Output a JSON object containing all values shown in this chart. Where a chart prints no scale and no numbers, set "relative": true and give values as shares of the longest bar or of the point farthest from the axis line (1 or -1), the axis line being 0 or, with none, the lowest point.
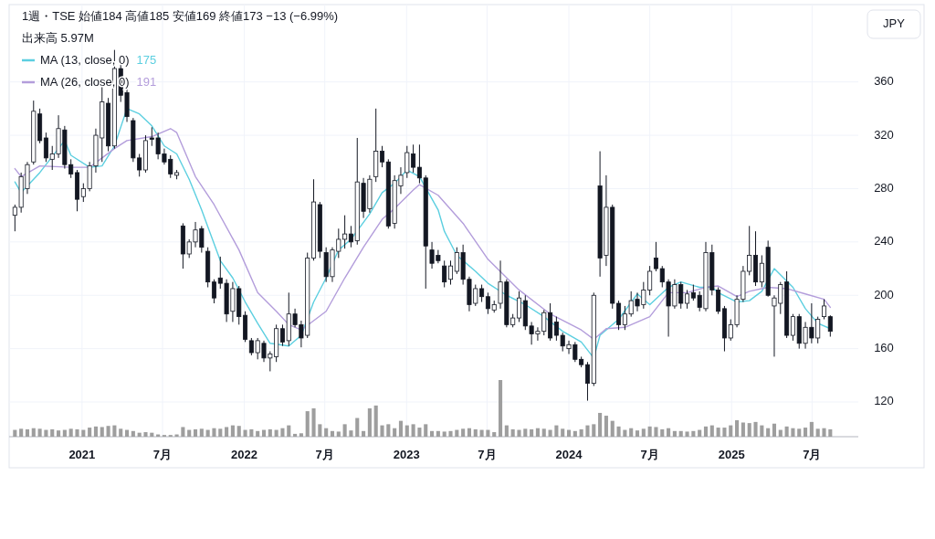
{
  "chart_data": [
    {
      "type": "candlestick",
      "title": "1週・TSE 始値184 高値185 安値169 終値173 −13 (−6.99%)",
      "ylabel": "JPY",
      "annotations": [
        "出来高 5.97M",
        "175",
        "191"
      ],
      "x": [
        "2020-08-03",
        "2020-08-17",
        "2020-08-31",
        "2020-09-14",
        "2020-09-28",
        "2020-10-12",
        "2020-10-26",
        "2020-11-09",
        "2020-11-23",
        "2020-12-07",
        "2020-12-21",
        "2021-01-04",
        "2021-01-18",
        "2021-02-01",
        "2021-02-15",
        "2021-03-01",
        "2021-03-15",
        "2021-03-29",
        "2021-04-12",
        "2021-04-26",
        "2021-05-10",
        "2021-05-24",
        "2021-06-07",
        "2021-06-21",
        "2021-07-05",
        "2021-07-19",
        "2021-08-02",
        "2021-08-16",
        "2021-08-30",
        "2021-09-13",
        "2021-09-27",
        "2021-10-11",
        "2021-10-25",
        "2021-11-08",
        "2021-11-22",
        "2021-12-06",
        "2021-12-20",
        "2022-01-03",
        "2022-01-17",
        "2022-01-31",
        "2022-02-14",
        "2022-02-28",
        "2022-03-14",
        "2022-03-28",
        "2022-04-11",
        "2022-04-25",
        "2022-05-09",
        "2022-05-23",
        "2022-06-06",
        "2022-06-20",
        "2022-07-04",
        "2022-07-18",
        "2022-08-01",
        "2022-08-15",
        "2022-08-29",
        "2022-09-12",
        "2022-09-26",
        "2022-10-10",
        "2022-10-24",
        "2022-11-07",
        "2022-11-21",
        "2022-12-05",
        "2022-12-19",
        "2023-01-02",
        "2023-01-16",
        "2023-01-30",
        "2023-02-13",
        "2023-02-27",
        "2023-03-13",
        "2023-03-27",
        "2023-04-10",
        "2023-04-24",
        "2023-05-08",
        "2023-05-22",
        "2023-06-05",
        "2023-06-19",
        "2023-07-03",
        "2023-07-17",
        "2023-07-31",
        "2023-08-14",
        "2023-08-28",
        "2023-09-11",
        "2023-09-25",
        "2023-10-09",
        "2023-10-23",
        "2023-11-06",
        "2023-11-20",
        "2023-12-04",
        "2023-12-18",
        "2024-01-01",
        "2024-01-15",
        "2024-01-29",
        "2024-02-12",
        "2024-02-26",
        "2024-03-11",
        "2024-03-25",
        "2024-04-08",
        "2024-04-22",
        "2024-05-06",
        "2024-05-20",
        "2024-06-03",
        "2024-06-17",
        "2024-07-01",
        "2024-07-15",
        "2024-07-29",
        "2024-08-12",
        "2024-08-26",
        "2024-09-09",
        "2024-09-23",
        "2024-10-07",
        "2024-10-21",
        "2024-11-04",
        "2024-11-18",
        "2024-12-02",
        "2024-12-16",
        "2024-12-30",
        "2025-01-13",
        "2025-01-27",
        "2025-02-10",
        "2025-02-24",
        "2025-03-10",
        "2025-03-24",
        "2025-04-07",
        "2025-04-21",
        "2025-05-05",
        "2025-05-19",
        "2025-06-02",
        "2025-06-16",
        "2025-06-30",
        "2025-07-14",
        "2025-07-28",
        "2025-08-11"
      ],
      "ohlc": [
        [
          260,
          268,
          248,
          266
        ],
        [
          266,
          292,
          262,
          289
        ],
        [
          280,
          300,
          276,
          298
        ],
        [
          300,
          346,
          298,
          338
        ],
        [
          336,
          340,
          314,
          316
        ],
        [
          318,
          322,
          300,
          303
        ],
        [
          302,
          312,
          294,
          306
        ],
        [
          306,
          335,
          303,
          325
        ],
        [
          324,
          327,
          295,
          298
        ],
        [
          298,
          302,
          288,
          291
        ],
        [
          292,
          294,
          263,
          272
        ],
        [
          274,
          284,
          270,
          280
        ],
        [
          280,
          300,
          278,
          297
        ],
        [
          297,
          325,
          292,
          320
        ],
        [
          318,
          358,
          300,
          345
        ],
        [
          344,
          348,
          308,
          312
        ],
        [
          312,
          384,
          310,
          370
        ],
        [
          370,
          375,
          345,
          350
        ],
        [
          352,
          356,
          330,
          334
        ],
        [
          331,
          333,
          300,
          303
        ],
        [
          303,
          306,
          289,
          294
        ],
        [
          294,
          320,
          292,
          316
        ],
        [
          318,
          326,
          312,
          317
        ],
        [
          318,
          322,
          302,
          306
        ],
        [
          306,
          310,
          298,
          300
        ],
        [
          302,
          305,
          288,
          291
        ],
        [
          290,
          294,
          287,
          292
        ],
        [
          252,
          254,
          220,
          231
        ],
        [
          231,
          242,
          228,
          240
        ],
        [
          240,
          255,
          236,
          249
        ],
        [
          250,
          252,
          232,
          236
        ],
        [
          233,
          236,
          206,
          210
        ],
        [
          210,
          212,
          194,
          198
        ],
        [
          213,
          229,
          205,
          209
        ],
        [
          209,
          212,
          180,
          186
        ],
        [
          188,
          210,
          180,
          205
        ],
        [
          205,
          207,
          178,
          184
        ],
        [
          185,
          188,
          165,
          167
        ],
        [
          166,
          168,
          155,
          157
        ],
        [
          157,
          168,
          152,
          166
        ],
        [
          164,
          166,
          150,
          153
        ],
        [
          153,
          158,
          143,
          156
        ],
        [
          154,
          178,
          150,
          175
        ],
        [
          175,
          178,
          162,
          165
        ],
        [
          166,
          202,
          162,
          186
        ],
        [
          186,
          190,
          176,
          178
        ],
        [
          178,
          181,
          161,
          168
        ],
        [
          170,
          232,
          168,
          228
        ],
        [
          228,
          287,
          226,
          270
        ],
        [
          268,
          270,
          228,
          233
        ],
        [
          232,
          236,
          210,
          214
        ],
        [
          214,
          236,
          210,
          234
        ],
        [
          233,
          250,
          228,
          242
        ],
        [
          242,
          260,
          235,
          246
        ],
        [
          246,
          252,
          236,
          240
        ],
        [
          241,
          318,
          238,
          285
        ],
        [
          284,
          288,
          258,
          263
        ],
        [
          265,
          290,
          262,
          287
        ],
        [
          289,
          340,
          285,
          308
        ],
        [
          308,
          312,
          296,
          300
        ],
        [
          300,
          302,
          250,
          252
        ],
        [
          254,
          290,
          250,
          286
        ],
        [
          282,
          296,
          276,
          290
        ],
        [
          292,
          312,
          288,
          307
        ],
        [
          306,
          313,
          292,
          296
        ],
        [
          296,
          313,
          284,
          288
        ],
        [
          288,
          290,
          205,
          237
        ],
        [
          234,
          240,
          220,
          224
        ],
        [
          230,
          234,
          224,
          226
        ],
        [
          222,
          226,
          206,
          210
        ],
        [
          212,
          226,
          208,
          222
        ],
        [
          218,
          236,
          216,
          232
        ],
        [
          232,
          238,
          208,
          212
        ],
        [
          212,
          214,
          188,
          193
        ],
        [
          194,
          208,
          192,
          205
        ],
        [
          205,
          208,
          195,
          199
        ],
        [
          199,
          202,
          186,
          190
        ],
        [
          189,
          196,
          187,
          193
        ],
        [
          194,
          226,
          190,
          210
        ],
        [
          210,
          212,
          176,
          178
        ],
        [
          178,
          186,
          176,
          183
        ],
        [
          183,
          203,
          180,
          198
        ],
        [
          196,
          200,
          174,
          177
        ],
        [
          177,
          180,
          163,
          171
        ],
        [
          171,
          176,
          166,
          173
        ],
        [
          173,
          189,
          170,
          187
        ],
        [
          187,
          194,
          166,
          168
        ],
        [
          180,
          184,
          166,
          170
        ],
        [
          170,
          172,
          158,
          162
        ],
        [
          160,
          166,
          156,
          163
        ],
        [
          163,
          165,
          150,
          152
        ],
        [
          152,
          154,
          146,
          148
        ],
        [
          148,
          150,
          121,
          134
        ],
        [
          134,
          202,
          132,
          200
        ],
        [
          282,
          308,
          214,
          228
        ],
        [
          230,
          290,
          222,
          266
        ],
        [
          266,
          268,
          190,
          194
        ],
        [
          194,
          196,
          174,
          178
        ],
        [
          178,
          192,
          174,
          186
        ],
        [
          186,
          203,
          184,
          196
        ],
        [
          197,
          202,
          188,
          192
        ],
        [
          193,
          210,
          190,
          204
        ],
        [
          204,
          222,
          200,
          218
        ],
        [
          228,
          240,
          218,
          220
        ],
        [
          220,
          222,
          206,
          210
        ],
        [
          210,
          212,
          169,
          192
        ],
        [
          192,
          212,
          190,
          208
        ],
        [
          208,
          210,
          190,
          194
        ],
        [
          194,
          204,
          190,
          201
        ],
        [
          202,
          208,
          196,
          198
        ],
        [
          200,
          203,
          188,
          191
        ],
        [
          190,
          240,
          188,
          232
        ],
        [
          232,
          238,
          200,
          204
        ],
        [
          204,
          206,
          186,
          188
        ],
        [
          190,
          192,
          158,
          168
        ],
        [
          168,
          182,
          166,
          178
        ],
        [
          178,
          200,
          176,
          197
        ],
        [
          197,
          222,
          195,
          218
        ],
        [
          218,
          252,
          215,
          230
        ],
        [
          230,
          248,
          207,
          210
        ],
        [
          210,
          230,
          206,
          224
        ],
        [
          236,
          241,
          199,
          200
        ],
        [
          192,
          200,
          154,
          198
        ],
        [
          194,
          210,
          186,
          208
        ],
        [
          210,
          218,
          168,
          170
        ],
        [
          170,
          186,
          166,
          184
        ],
        [
          184,
          186,
          160,
          164
        ],
        [
          164,
          180,
          160,
          176
        ],
        [
          176,
          194,
          164,
          168
        ],
        [
          168,
          184,
          164,
          182
        ],
        [
          184,
          197,
          182,
          192
        ],
        [
          184,
          185,
          169,
          173
        ]
      ],
      "series": [
        {
          "type": "line",
          "name": "MA (13, close, 0)",
          "color": "#5ccfe0",
          "x": [
            "2020-08-03",
            "2020-08-17",
            "2020-09-28",
            "2020-11-23",
            "2020-12-07",
            "2021-01-18",
            "2021-02-15",
            "2021-03-15",
            "2021-04-12",
            "2021-05-10",
            "2021-06-07",
            "2021-07-05",
            "2021-08-02",
            "2021-08-30",
            "2021-09-27",
            "2021-11-08",
            "2021-12-06",
            "2022-01-03",
            "2022-01-31",
            "2022-02-28",
            "2022-04-11",
            "2022-05-09",
            "2022-06-06",
            "2022-07-04",
            "2022-08-01",
            "2022-08-29",
            "2022-10-10",
            "2022-11-07",
            "2022-12-05",
            "2023-01-02",
            "2023-01-30",
            "2023-03-13",
            "2023-03-27",
            "2023-04-24",
            "2023-06-05",
            "2023-07-03",
            "2023-08-14",
            "2023-09-25",
            "2023-11-06",
            "2023-12-18",
            "2024-01-29",
            "2024-02-26",
            "2024-03-11",
            "2024-04-22",
            "2024-06-03",
            "2024-07-01",
            "2024-08-12",
            "2024-09-09",
            "2024-10-21",
            "2024-11-18",
            "2024-12-02",
            "2025-01-13",
            "2025-02-10",
            "2025-03-10",
            "2025-04-07",
            "2025-05-19",
            "2025-06-16",
            "2025-07-14",
            "2025-08-11"
          ],
          "values": [
            285,
            277,
            292,
            316,
            305,
            296,
            297,
            312,
            340,
            336,
            327,
            312,
            306,
            287,
            264,
            226,
            213,
            195,
            179,
            164,
            162,
            170,
            195,
            213,
            234,
            242,
            261,
            277,
            284,
            294,
            289,
            264,
            248,
            230,
            218,
            209,
            200,
            193,
            184,
            173,
            165,
            153,
            170,
            182,
            201,
            193,
            206,
            210,
            206,
            206,
            202,
            195,
            196,
            203,
            220,
            206,
            190,
            179,
            175
          ]
        },
        {
          "type": "line",
          "name": "MA (26, close, 0)",
          "color": "#b39ddb",
          "x": [
            "2020-08-03",
            "2020-08-17",
            "2020-09-28",
            "2020-12-07",
            "2021-01-18",
            "2021-03-15",
            "2021-04-12",
            "2021-06-07",
            "2021-07-19",
            "2021-08-02",
            "2021-09-13",
            "2021-10-25",
            "2021-12-20",
            "2022-01-31",
            "2022-03-14",
            "2022-04-11",
            "2022-05-09",
            "2022-07-04",
            "2022-08-15",
            "2022-09-26",
            "2022-11-07",
            "2022-12-05",
            "2023-01-16",
            "2023-01-30",
            "2023-03-13",
            "2023-05-08",
            "2023-07-03",
            "2023-09-11",
            "2023-11-20",
            "2024-01-29",
            "2024-02-26",
            "2024-03-25",
            "2024-05-06",
            "2024-07-01",
            "2024-08-12",
            "2024-09-23",
            "2024-11-04",
            "2024-12-02",
            "2025-01-13",
            "2025-02-10",
            "2025-03-24",
            "2025-05-05",
            "2025-06-16",
            "2025-07-28",
            "2025-08-11"
          ],
          "values": [
            295,
            289,
            297,
            296,
            296,
            310,
            316,
            319,
            325,
            322,
            289,
            268,
            234,
            202,
            188,
            178,
            174,
            188,
            213,
            236,
            257,
            265,
            279,
            283,
            275,
            254,
            227,
            204,
            186,
            174,
            167,
            175,
            176,
            184,
            202,
            202,
            206,
            207,
            199,
            203,
            206,
            205,
            201,
            197,
            191
          ]
        }
      ],
      "xlim": [
        "2020-07-21",
        "2025-10-13"
      ],
      "xticks": [
        {
          "value": "2021-01-01",
          "label": null
        },
        {
          "value": "2021-07-01",
          "label": null
        },
        {
          "value": "2022-01-01",
          "label": null
        },
        {
          "value": "2022-07-01",
          "label": null
        },
        {
          "value": "2023-01-01",
          "label": null
        },
        {
          "value": "2023-07-01",
          "label": null
        },
        {
          "value": "2024-01-01",
          "label": null
        },
        {
          "value": "2024-07-01",
          "label": null
        },
        {
          "value": "2025-01-01",
          "label": null
        },
        {
          "value": "2025-07-01",
          "label": null
        }
      ],
      "ylim": [
        94,
        418
      ],
      "yticks": [
        120,
        160,
        200,
        240,
        280,
        320,
        360
      ],
      "grid": true,
      "legend": "top left",
      "tick_labels": "y"
    },
    {
      "type": "bar",
      "relative": true,
      "color": "#9e9e9e",
      "x": [
        "2020-08-03",
        "2020-08-17",
        "2020-08-31",
        "2020-09-14",
        "2020-09-28",
        "2020-10-12",
        "2020-10-26",
        "2020-11-09",
        "2020-11-23",
        "2020-12-07",
        "2020-12-21",
        "2021-01-04",
        "2021-01-18",
        "2021-02-01",
        "2021-02-15",
        "2021-03-01",
        "2021-03-15",
        "2021-03-29",
        "2021-04-12",
        "2021-04-26",
        "2021-05-10",
        "2021-05-24",
        "2021-06-07",
        "2021-06-21",
        "2021-07-05",
        "2021-07-19",
        "2021-08-02",
        "2021-08-16",
        "2021-08-30",
        "2021-09-13",
        "2021-09-27",
        "2021-10-11",
        "2021-10-25",
        "2021-11-08",
        "2021-11-22",
        "2021-12-06",
        "2021-12-20",
        "2022-01-03",
        "2022-01-17",
        "2022-01-31",
        "2022-02-14",
        "2022-02-28",
        "2022-03-14",
        "2022-03-28",
        "2022-04-11",
        "2022-04-25",
        "2022-05-09",
        "2022-05-23",
        "2022-06-06",
        "2022-06-20",
        "2022-07-04",
        "2022-07-18",
        "2022-08-01",
        "2022-08-15",
        "2022-08-29",
        "2022-09-12",
        "2022-09-26",
        "2022-10-10",
        "2022-10-24",
        "2022-11-07",
        "2022-11-21",
        "2022-12-05",
        "2022-12-19",
        "2023-01-02",
        "2023-01-16",
        "2023-01-30",
        "2023-02-13",
        "2023-02-27",
        "2023-03-13",
        "2023-03-27",
        "2023-04-10",
        "2023-04-24",
        "2023-05-08",
        "2023-05-22",
        "2023-06-05",
        "2023-06-19",
        "2023-07-03",
        "2023-07-17",
        "2023-07-31",
        "2023-08-14",
        "2023-08-28",
        "2023-09-11",
        "2023-09-25",
        "2023-10-09",
        "2023-10-23",
        "2023-11-06",
        "2023-11-20",
        "2023-12-04",
        "2023-12-18",
        "2024-01-01",
        "2024-01-15",
        "2024-01-29",
        "2024-02-12",
        "2024-02-26",
        "2024-03-11",
        "2024-03-25",
        "2024-04-08",
        "2024-04-22",
        "2024-05-06",
        "2024-05-20",
        "2024-06-03",
        "2024-06-17",
        "2024-07-01",
        "2024-07-15",
        "2024-07-29",
        "2024-08-12",
        "2024-08-26",
        "2024-09-09",
        "2024-09-23",
        "2024-10-07",
        "2024-10-21",
        "2024-11-04",
        "2024-11-18",
        "2024-12-02",
        "2024-12-16",
        "2024-12-30",
        "2025-01-13",
        "2025-01-27",
        "2025-02-10",
        "2025-02-24",
        "2025-03-10",
        "2025-03-24",
        "2025-04-07",
        "2025-04-21",
        "2025-05-05",
        "2025-05-19",
        "2025-06-02",
        "2025-06-16",
        "2025-06-30",
        "2025-07-14",
        "2025-07-28",
        "2025-08-11"
      ],
      "values": [
        0.12,
        0.14,
        0.13,
        0.15,
        0.14,
        0.12,
        0.13,
        0.11,
        0.12,
        0.14,
        0.13,
        0.12,
        0.16,
        0.18,
        0.17,
        0.19,
        0.2,
        0.14,
        0.12,
        0.1,
        0.07,
        0.08,
        0.07,
        0.04,
        0.03,
        0.03,
        0.04,
        0.17,
        0.12,
        0.13,
        0.14,
        0.12,
        0.15,
        0.14,
        0.17,
        0.2,
        0.19,
        0.12,
        0.13,
        0.1,
        0.12,
        0.13,
        0.12,
        0.15,
        0.2,
        0.05,
        0.06,
        0.45,
        0.5,
        0.22,
        0.15,
        0.1,
        0.09,
        0.22,
        0.11,
        0.33,
        0.1,
        0.5,
        0.55,
        0.2,
        0.22,
        0.15,
        0.28,
        0.2,
        0.22,
        0.16,
        0.22,
        0.1,
        0.1,
        0.09,
        0.1,
        0.12,
        0.14,
        0.15,
        0.13,
        0.12,
        0.12,
        0.08,
        1.0,
        0.2,
        0.13,
        0.12,
        0.14,
        0.13,
        0.15,
        0.14,
        0.12,
        0.2,
        0.14,
        0.12,
        0.1,
        0.13,
        0.2,
        0.22,
        0.42,
        0.37,
        0.28,
        0.18,
        0.12,
        0.15,
        0.11,
        0.14,
        0.18,
        0.17,
        0.13,
        0.15,
        0.1,
        0.1,
        0.09,
        0.1,
        0.12,
        0.18,
        0.2,
        0.16,
        0.16,
        0.2,
        0.29,
        0.25,
        0.24,
        0.26,
        0.2,
        0.15,
        0.23,
        0.12,
        0.18,
        0.15,
        0.14,
        0.16,
        0.26,
        0.14,
        0.15,
        0.13
      ],
      "xlim": [
        "2020-07-21",
        "2025-10-13"
      ],
      "xticks": [
        {
          "value": "2021-01-01",
          "label": "2021"
        },
        {
          "value": "2021-07-01",
          "label": "7月"
        },
        {
          "value": "2022-01-01",
          "label": "2022"
        },
        {
          "value": "2022-07-01",
          "label": "7月"
        },
        {
          "value": "2023-01-01",
          "label": "2023"
        },
        {
          "value": "2023-07-01",
          "label": "7月"
        },
        {
          "value": "2024-01-01",
          "label": "2024"
        },
        {
          "value": "2024-07-01",
          "label": "7月"
        },
        {
          "value": "2025-01-01",
          "label": "2025"
        },
        {
          "value": "2025-07-01",
          "label": "7月"
        }
      ],
      "tick_labels": "x"
    }
  ]
}
